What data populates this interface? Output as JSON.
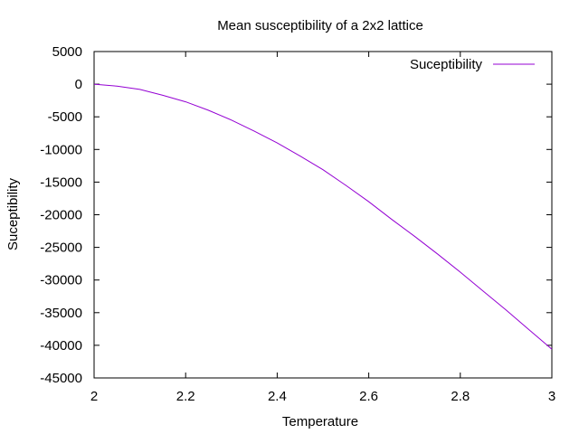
{
  "chart_data": {
    "type": "line",
    "title": "Mean susceptibility of a 2x2 lattice",
    "xlabel": "Temperature",
    "ylabel": "Suceptibility",
    "xlim": [
      2,
      3
    ],
    "ylim": [
      -45000,
      5000
    ],
    "x_ticks": [
      "2",
      "2.2",
      "2.4",
      "2.6",
      "2.8",
      "3"
    ],
    "y_ticks": [
      "5000",
      "0",
      "-5000",
      "-10000",
      "-15000",
      "-20000",
      "-25000",
      "-30000",
      "-35000",
      "-40000",
      "-45000"
    ],
    "grid": false,
    "legend_position": "top-right",
    "series": [
      {
        "name": "Suceptibility",
        "color": "#9400d3",
        "x": [
          2.0,
          2.05,
          2.1,
          2.15,
          2.2,
          2.25,
          2.3,
          2.35,
          2.4,
          2.45,
          2.5,
          2.55,
          2.6,
          2.65,
          2.7,
          2.75,
          2.8,
          2.85,
          2.9,
          2.95,
          3.0
        ],
        "y": [
          0,
          -300,
          -800,
          -1700,
          -2700,
          -4000,
          -5500,
          -7200,
          -9000,
          -11000,
          -13100,
          -15500,
          -18000,
          -20700,
          -23300,
          -26000,
          -28800,
          -31700,
          -34600,
          -37600,
          -40600
        ]
      }
    ]
  }
}
